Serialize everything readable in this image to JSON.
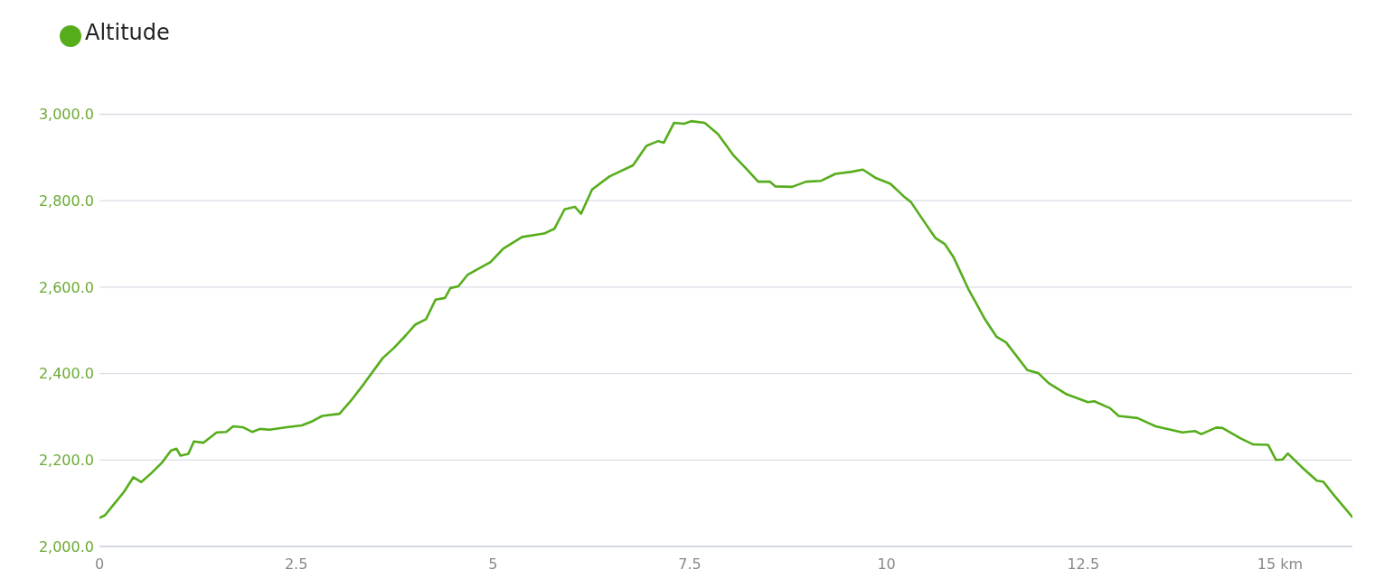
{
  "chart_data": {
    "type": "line",
    "x": [
      0,
      0.07,
      0.19,
      0.31,
      0.43,
      0.53,
      0.65,
      0.79,
      0.91,
      0.98,
      1.03,
      1.13,
      1.2,
      1.32,
      1.49,
      1.61,
      1.7,
      1.82,
      1.94,
      2.04,
      2.16,
      2.38,
      2.57,
      2.71,
      2.83,
      3.05,
      3.19,
      3.36,
      3.6,
      3.74,
      3.89,
      4.01,
      4.15,
      4.27,
      4.39,
      4.46,
      4.56,
      4.68,
      4.85,
      4.97,
      5.13,
      5.37,
      5.65,
      5.78,
      5.91,
      6.04,
      6.12,
      6.26,
      6.48,
      6.78,
      6.95,
      7.1,
      7.17,
      7.3,
      7.43,
      7.52,
      7.69,
      7.86,
      8.06,
      8.22,
      8.37,
      8.52,
      8.59,
      8.8,
      8.98,
      9.17,
      9.35,
      9.56,
      9.7,
      9.87,
      10.05,
      10.22,
      10.31,
      10.44,
      10.62,
      10.74,
      10.85,
      11.05,
      11.13,
      11.25,
      11.4,
      11.52,
      11.79,
      11.93,
      12.06,
      12.29,
      12.56,
      12.64,
      12.84,
      12.95,
      13.19,
      13.42,
      13.76,
      13.92,
      14,
      14.19,
      14.27,
      14.5,
      14.66,
      14.85,
      14.95,
      15.03,
      15.1,
      15.28,
      15.47,
      15.55,
      15.67,
      15.92
    ],
    "series": [
      {
        "name": "Altitude",
        "color": "#56ad1c",
        "values": [
          2066,
          2072,
          2099,
          2126,
          2160,
          2149,
          2168,
          2193,
          2222,
          2226,
          2210,
          2214,
          2243,
          2240,
          2264,
          2265,
          2278,
          2276,
          2265,
          2272,
          2270,
          2276,
          2280,
          2290,
          2302,
          2307,
          2336,
          2376,
          2436,
          2459,
          2488,
          2513,
          2526,
          2571,
          2575,
          2598,
          2602,
          2629,
          2646,
          2658,
          2689,
          2716,
          2724,
          2735,
          2780,
          2786,
          2770,
          2826,
          2856,
          2882,
          2927,
          2938,
          2934,
          2980,
          2978,
          2984,
          2980,
          2954,
          2904,
          2874,
          2844,
          2844,
          2833,
          2832,
          2844,
          2846,
          2862,
          2867,
          2872,
          2852,
          2839,
          2810,
          2797,
          2762,
          2714,
          2700,
          2670,
          2592,
          2566,
          2526,
          2485,
          2472,
          2408,
          2401,
          2378,
          2352,
          2334,
          2336,
          2320,
          2302,
          2297,
          2278,
          2264,
          2267,
          2260,
          2275,
          2274,
          2250,
          2236,
          2235,
          2200,
          2201,
          2215,
          2183,
          2152,
          2150,
          2122,
          2068
        ]
      }
    ],
    "xlim": [
      0,
      15.92
    ],
    "xticks": [
      0,
      2.5,
      5,
      7.5,
      10,
      12.5,
      {
        "value": 15,
        "label": "15 km"
      }
    ],
    "ylim": [
      2000,
      3000
    ],
    "yticks": [
      {
        "value": 2000,
        "label": "2,000.0"
      },
      {
        "value": 2200,
        "label": "2,200.0"
      },
      {
        "value": 2400,
        "label": "2,400.0"
      },
      {
        "value": 2600,
        "label": "2,600.0"
      },
      {
        "value": 2800,
        "label": "2,800.0"
      },
      {
        "value": 3000,
        "label": "3,000.0"
      }
    ],
    "grid": "y",
    "legend": "top left",
    "marker": "none",
    "line_style": "solid"
  }
}
